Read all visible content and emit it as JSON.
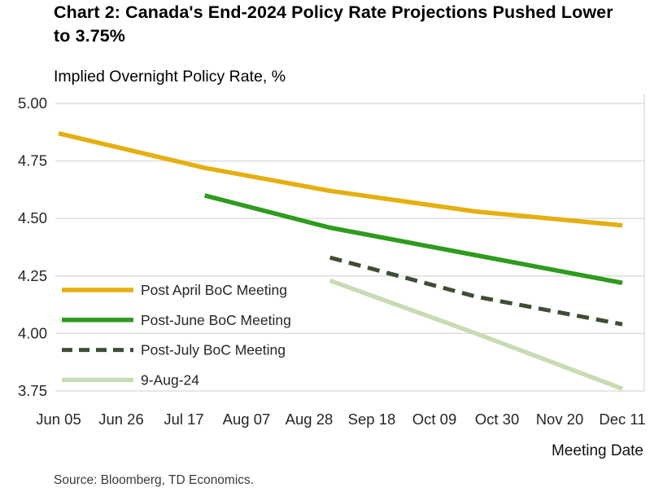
{
  "header": {
    "title": "Chart 2: Canada's End-2024 Policy Rate Projections Pushed Lower to 3.75%",
    "subtitle": "Implied Overnight Policy Rate, %"
  },
  "footer": {
    "source": "Source: Bloomberg, TD Economics."
  },
  "chart_data": {
    "type": "line",
    "title": "Chart 2: Canada's End-2024 Policy Rate Projections Pushed Lower to 3.75%",
    "ylabel": "Implied Overnight Policy Rate, %",
    "xlabel": "Meeting Date",
    "ylim": [
      3.75,
      5.0
    ],
    "y_ticks": [
      5.0,
      4.75,
      4.5,
      4.25,
      4.0,
      3.75
    ],
    "x_tick_labels": [
      "Jun 05",
      "Jun 26",
      "Jul 17",
      "Aug 07",
      "Aug 28",
      "Sep 18",
      "Oct 09",
      "Oct 30",
      "Nov 20",
      "Dec 11"
    ],
    "x_tick_interval_days": 21,
    "grid": "horizontal",
    "legend_position": "inside-left",
    "colors": {
      "grid": "#D8D8D8",
      "axis_text": "#262626",
      "title_text": "#000000"
    },
    "series": [
      {
        "id": "post-april-boc-meeting",
        "name": "Post April BoC Meeting",
        "color": "#E4AF0F",
        "line_style": "solid",
        "width": 5.5,
        "points": [
          {
            "date": "Jun 05",
            "t": 0,
            "y": 4.87
          },
          {
            "date": "Jul 24",
            "t": 2.333,
            "y": 4.72
          },
          {
            "date": "Sep 04",
            "t": 4.333,
            "y": 4.62
          },
          {
            "date": "Oct 23",
            "t": 6.667,
            "y": 4.53
          },
          {
            "date": "Dec 11",
            "t": 9,
            "y": 4.47
          }
        ]
      },
      {
        "id": "post-june-boc-meeting",
        "name": "Post-June BoC Meeting",
        "color": "#2E9B1E",
        "line_style": "solid",
        "width": 5.5,
        "points": [
          {
            "date": "Jul 24",
            "t": 2.333,
            "y": 4.6
          },
          {
            "date": "Sep 04",
            "t": 4.333,
            "y": 4.46
          },
          {
            "date": "Oct 23",
            "t": 6.667,
            "y": 4.34
          },
          {
            "date": "Dec 11",
            "t": 9,
            "y": 4.22
          }
        ]
      },
      {
        "id": "post-july-boc-meeting",
        "name": "Post-July BoC Meeting",
        "color": "#3F4D35",
        "line_style": "dashed",
        "dash": "15 9",
        "width": 5,
        "points": [
          {
            "date": "Sep 04",
            "t": 4.333,
            "y": 4.33
          },
          {
            "date": "Oct 23",
            "t": 6.667,
            "y": 4.16
          },
          {
            "date": "Dec 11",
            "t": 9,
            "y": 4.04
          }
        ]
      },
      {
        "id": "9-aug-24",
        "name": "9-Aug-24",
        "color": "#C9DBB3",
        "line_style": "solid",
        "width": 5.5,
        "points": [
          {
            "date": "Sep 04",
            "t": 4.333,
            "y": 4.23
          },
          {
            "date": "Oct 23",
            "t": 6.667,
            "y": 4.0
          },
          {
            "date": "Dec 11",
            "t": 9,
            "y": 3.76
          }
        ]
      }
    ]
  }
}
